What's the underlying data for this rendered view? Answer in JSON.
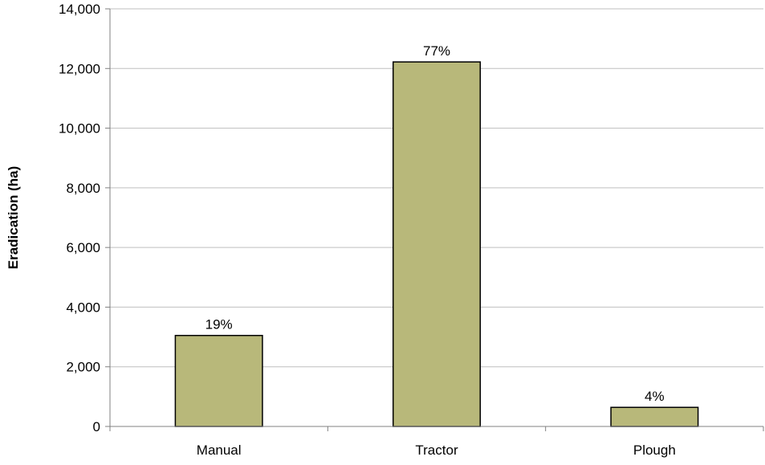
{
  "chart_data": {
    "type": "bar",
    "title": "",
    "xlabel": "",
    "ylabel": "Eradication (ha)",
    "categories": [
      "Manual",
      "Tractor",
      "Plough"
    ],
    "values": [
      3050,
      12220,
      640
    ],
    "data_labels": [
      "19%",
      "77%",
      "4%"
    ],
    "ylim": [
      0,
      14000
    ],
    "yticks": [
      0,
      2000,
      4000,
      6000,
      8000,
      10000,
      12000,
      14000
    ],
    "ytick_labels": [
      "0",
      "2,000",
      "4,000",
      "6,000",
      "8,000",
      "10,000",
      "12,000",
      "14,000"
    ],
    "grid": true,
    "legend": "none",
    "colors": {
      "bar_fill": "#b8b87a",
      "bar_stroke": "#000000",
      "grid": "#bfbfbf",
      "axis": "#808080"
    }
  }
}
